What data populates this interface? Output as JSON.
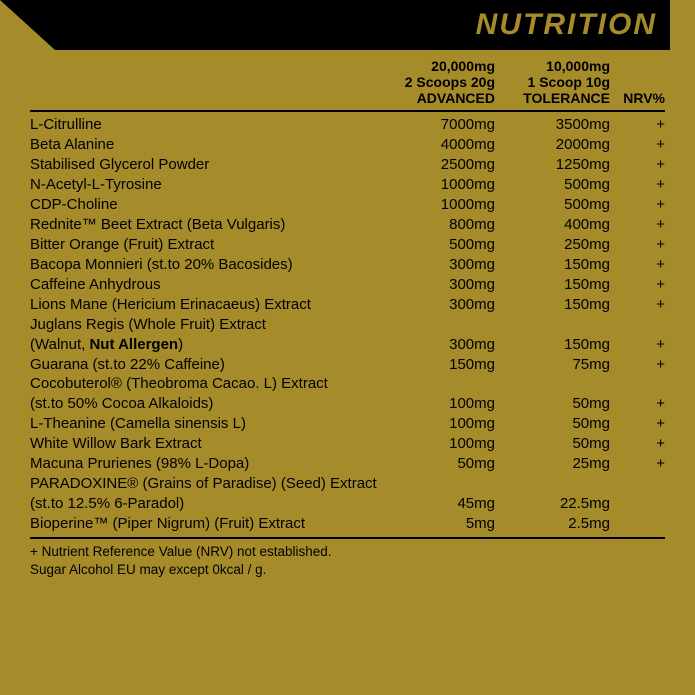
{
  "title": "NUTRITION",
  "background_color": "#a68b2a",
  "band_color": "#000000",
  "text_color": "#000000",
  "columns": {
    "advanced": {
      "l1": "20,000mg",
      "l2": "2 Scoops 20g",
      "l3": "ADVANCED"
    },
    "tolerance": {
      "l1": "10,000mg",
      "l2": "1 Scoop 10g",
      "l3": "TOLERANCE"
    },
    "nrv": "NRV%"
  },
  "rows": [
    {
      "name": "L-Citrulline",
      "adv": "7000mg",
      "tol": "3500mg",
      "nrv": "+"
    },
    {
      "name": "Beta Alanine",
      "adv": "4000mg",
      "tol": "2000mg",
      "nrv": "+"
    },
    {
      "name": "Stabilised Glycerol Powder",
      "adv": "2500mg",
      "tol": "1250mg",
      "nrv": "+"
    },
    {
      "name": "N-Acetyl-L-Tyrosine",
      "adv": "1000mg",
      "tol": "500mg",
      "nrv": "+"
    },
    {
      "name": "CDP-Choline",
      "adv": "1000mg",
      "tol": "500mg",
      "nrv": "+"
    },
    {
      "name": "Rednite™ Beet Extract (Beta Vulgaris)",
      "adv": "800mg",
      "tol": "400mg",
      "nrv": "+"
    },
    {
      "name": "Bitter Orange (Fruit) Extract",
      "adv": "500mg",
      "tol": "250mg",
      "nrv": "+"
    },
    {
      "name": "Bacopa Monnieri (st.to 20% Bacosides)",
      "adv": "300mg",
      "tol": "150mg",
      "nrv": "+"
    },
    {
      "name": "Caffeine Anhydrous",
      "adv": "300mg",
      "tol": "150mg",
      "nrv": "+"
    },
    {
      "name": "Lions Mane (Hericium Erinacaeus) Extract",
      "adv": "300mg",
      "tol": "150mg",
      "nrv": "+"
    },
    {
      "name": "Juglans Regis (Whole Fruit) Extract",
      "wrap": true
    },
    {
      "name_pre": "(Walnut, ",
      "name_bold": "Nut Allergen",
      "name_post": ")",
      "adv": "300mg",
      "tol": "150mg",
      "nrv": "+",
      "cont": true
    },
    {
      "name": "Guarana (st.to 22% Caffeine)",
      "adv": "150mg",
      "tol": "75mg",
      "nrv": "+"
    },
    {
      "name": "Cocobuterol® (Theobroma Cacao. L) Extract",
      "wrap": true
    },
    {
      "name": "(st.to 50% Cocoa Alkaloids)",
      "adv": "100mg",
      "tol": "50mg",
      "nrv": "+",
      "cont": true
    },
    {
      "name": "L-Theanine (Camella sinensis L)",
      "adv": "100mg",
      "tol": "50mg",
      "nrv": "+"
    },
    {
      "name": "White Willow Bark Extract",
      "adv": "100mg",
      "tol": "50mg",
      "nrv": "+"
    },
    {
      "name": "Macuna Prurienes (98% L-Dopa)",
      "adv": "50mg",
      "tol": "25mg",
      "nrv": "+"
    },
    {
      "name": "PARADOXINE® (Grains of Paradise) (Seed) Extract",
      "wrap": true
    },
    {
      "name": "(st.to 12.5% 6-Paradol)",
      "adv": "45mg",
      "tol": "22.5mg",
      "nrv": "",
      "cont": true
    },
    {
      "name": "Bioperine™ (Piper Nigrum) (Fruit) Extract",
      "adv": "5mg",
      "tol": "2.5mg",
      "nrv": ""
    }
  ],
  "footnotes": [
    "+ Nutrient Reference Value (NRV) not established.",
    "Sugar Alcohol EU may except 0kcal / g."
  ]
}
